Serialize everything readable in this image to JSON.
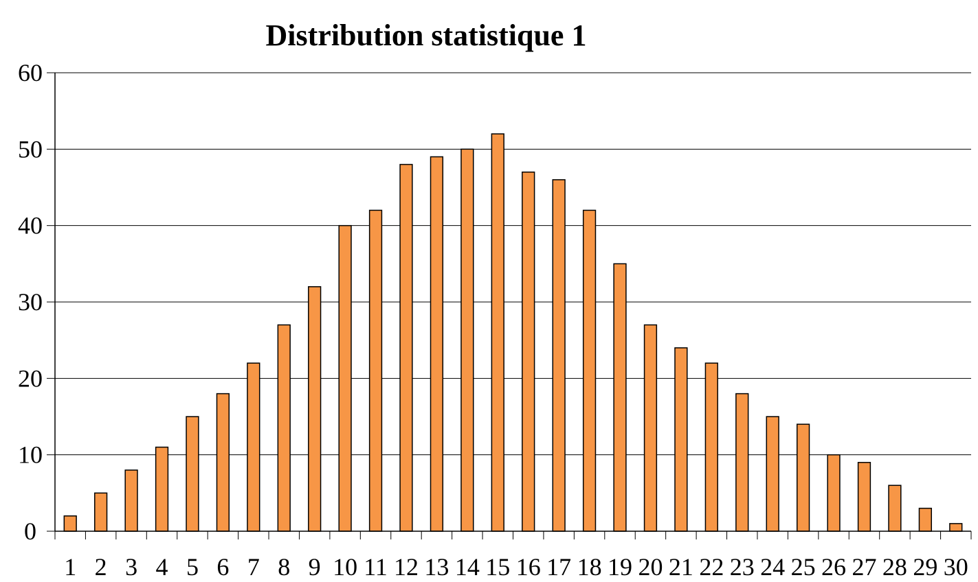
{
  "chart_data": {
    "type": "bar",
    "title": "Distribution statistique 1",
    "xlabel": "",
    "ylabel": "",
    "categories": [
      "1",
      "2",
      "3",
      "4",
      "5",
      "6",
      "7",
      "8",
      "9",
      "10",
      "11",
      "12",
      "13",
      "14",
      "15",
      "16",
      "17",
      "18",
      "19",
      "20",
      "21",
      "22",
      "23",
      "24",
      "25",
      "26",
      "27",
      "28",
      "29",
      "30"
    ],
    "values": [
      2,
      5,
      8,
      11,
      15,
      18,
      22,
      27,
      32,
      40,
      42,
      48,
      49,
      50,
      52,
      47,
      46,
      42,
      35,
      27,
      24,
      22,
      18,
      15,
      14,
      10,
      9,
      6,
      3,
      1
    ],
    "ylim": [
      0,
      60
    ],
    "yticks": [
      0,
      10,
      20,
      30,
      40,
      50,
      60
    ],
    "grid": "horizontal",
    "legend": "none",
    "colors": {
      "bar_fill": "#F79646",
      "bar_stroke": "#000000",
      "grid": "#000000",
      "background": "#FFFFFF"
    }
  }
}
